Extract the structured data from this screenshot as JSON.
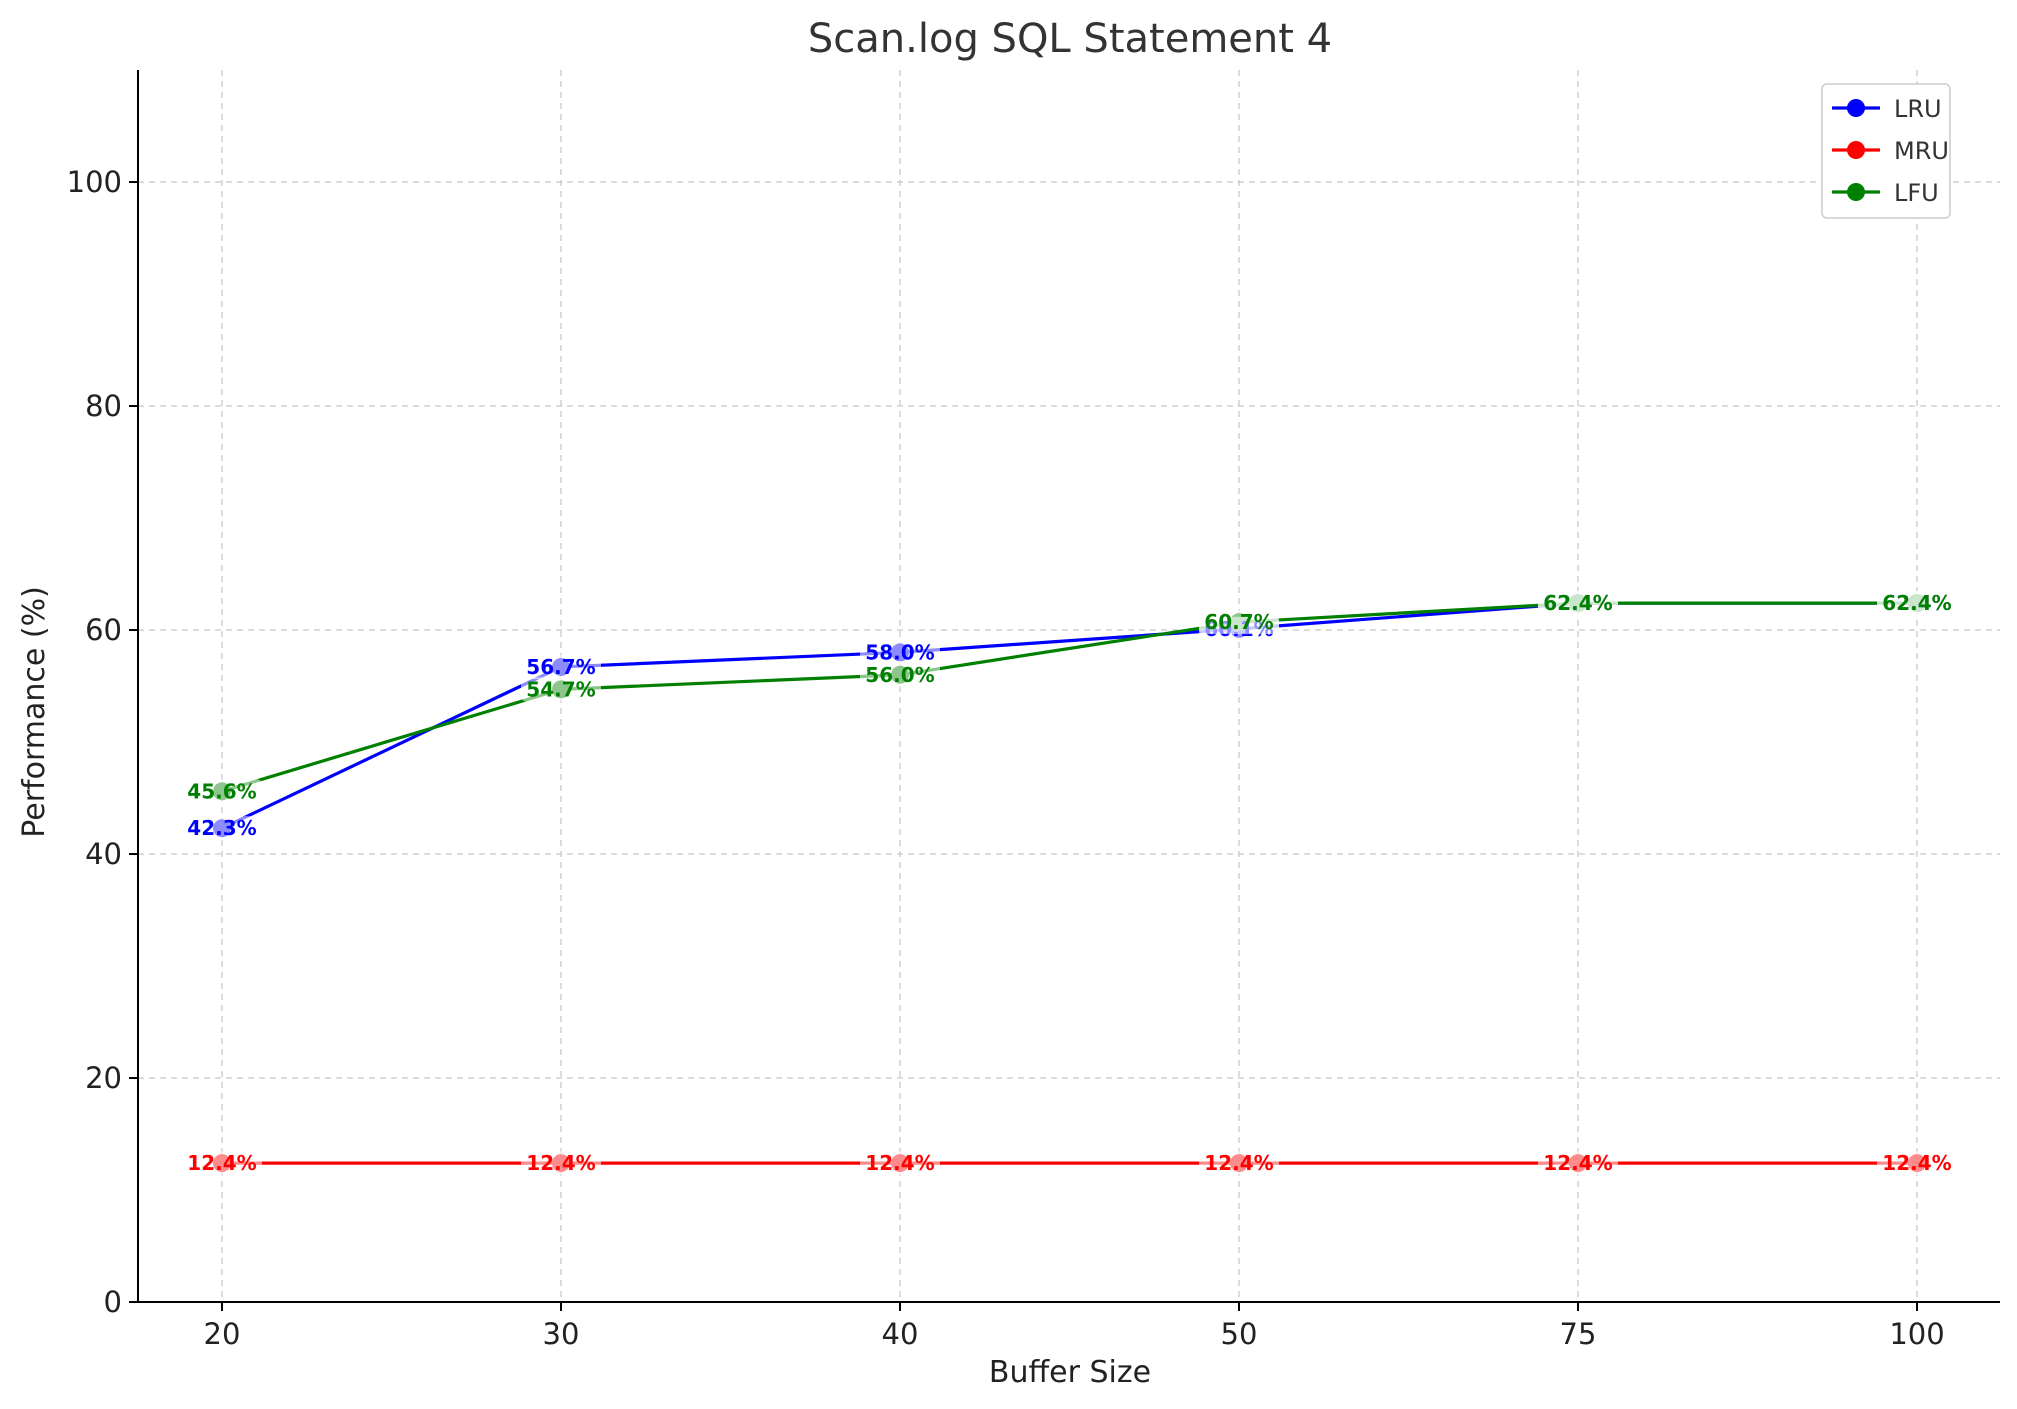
{
  "chart_data": {
    "type": "line",
    "title": "Scan.log SQL Statement 4",
    "xlabel": "Buffer Size",
    "ylabel": "Performance (%)",
    "categories": [
      "20",
      "30",
      "40",
      "50",
      "75",
      "100"
    ],
    "ylim": [
      0,
      110
    ],
    "yticks": [
      0,
      20,
      40,
      60,
      80,
      100
    ],
    "grid": true,
    "legend_position": "top-right",
    "series": [
      {
        "name": "LRU",
        "color": "#0000ff",
        "values": [
          42.3,
          56.7,
          58.0,
          60.1,
          62.4,
          62.4
        ],
        "labels": [
          "42.3%",
          "56.7%",
          "58.0%",
          "60.1%",
          "62.4%",
          "62.4%"
        ]
      },
      {
        "name": "MRU",
        "color": "#ff0000",
        "values": [
          12.4,
          12.4,
          12.4,
          12.4,
          12.4,
          12.4
        ],
        "labels": [
          "12.4%",
          "12.4%",
          "12.4%",
          "12.4%",
          "12.4%",
          "12.4%"
        ]
      },
      {
        "name": "LFU",
        "color": "#008000",
        "values": [
          45.6,
          54.7,
          56.0,
          60.7,
          62.4,
          62.4
        ],
        "labels": [
          "45.6%",
          "54.7%",
          "56.0%",
          "60.7%",
          "62.4%",
          "62.4%"
        ]
      }
    ]
  }
}
